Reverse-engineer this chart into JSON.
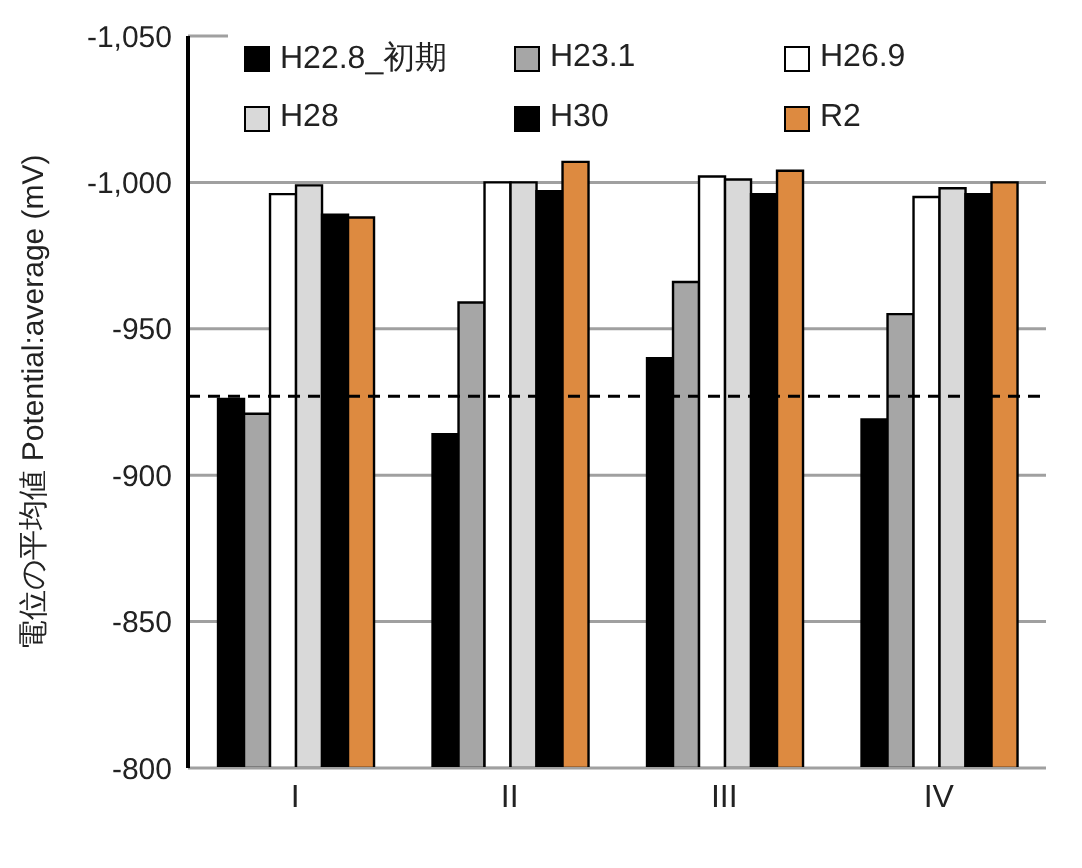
{
  "chart_data": {
    "type": "bar",
    "ylabel": "電位の平均値 Potential:average (mV)",
    "categories": [
      "I",
      "II",
      "III",
      "IV"
    ],
    "series": [
      {
        "name": "H22.8_初期",
        "color": "#000000",
        "values": [
          -926,
          -914,
          -940,
          -919
        ]
      },
      {
        "name": "H23.1",
        "color": "#a6a6a6",
        "values": [
          -921,
          -959,
          -966,
          -955
        ]
      },
      {
        "name": "H26.9",
        "color": "#ffffff",
        "values": [
          -996,
          -1000,
          -1002,
          -995
        ]
      },
      {
        "name": "H28",
        "color": "#d9d9d9",
        "values": [
          -999,
          -1000,
          -1001,
          -998
        ]
      },
      {
        "name": "H30",
        "color": "#000000",
        "values": [
          -989,
          -997,
          -996,
          -996
        ]
      },
      {
        "name": "R2",
        "color": "#dd8a40",
        "values": [
          -988,
          -1007,
          -1004,
          -1000
        ]
      }
    ],
    "ylim": [
      -800,
      -1050
    ],
    "yticks": [
      {
        "value": -800,
        "label": "-800"
      },
      {
        "value": -850,
        "label": "-850"
      },
      {
        "value": -900,
        "label": "-900"
      },
      {
        "value": -950,
        "label": "-950"
      },
      {
        "value": -1000,
        "label": "-1,000"
      },
      {
        "value": -1050,
        "label": "-1,050"
      }
    ],
    "ref_lines": [
      {
        "axis": "y",
        "value": -927,
        "color": "#000000",
        "line_style": "dashed"
      }
    ],
    "grid": "y",
    "legend": "top"
  }
}
